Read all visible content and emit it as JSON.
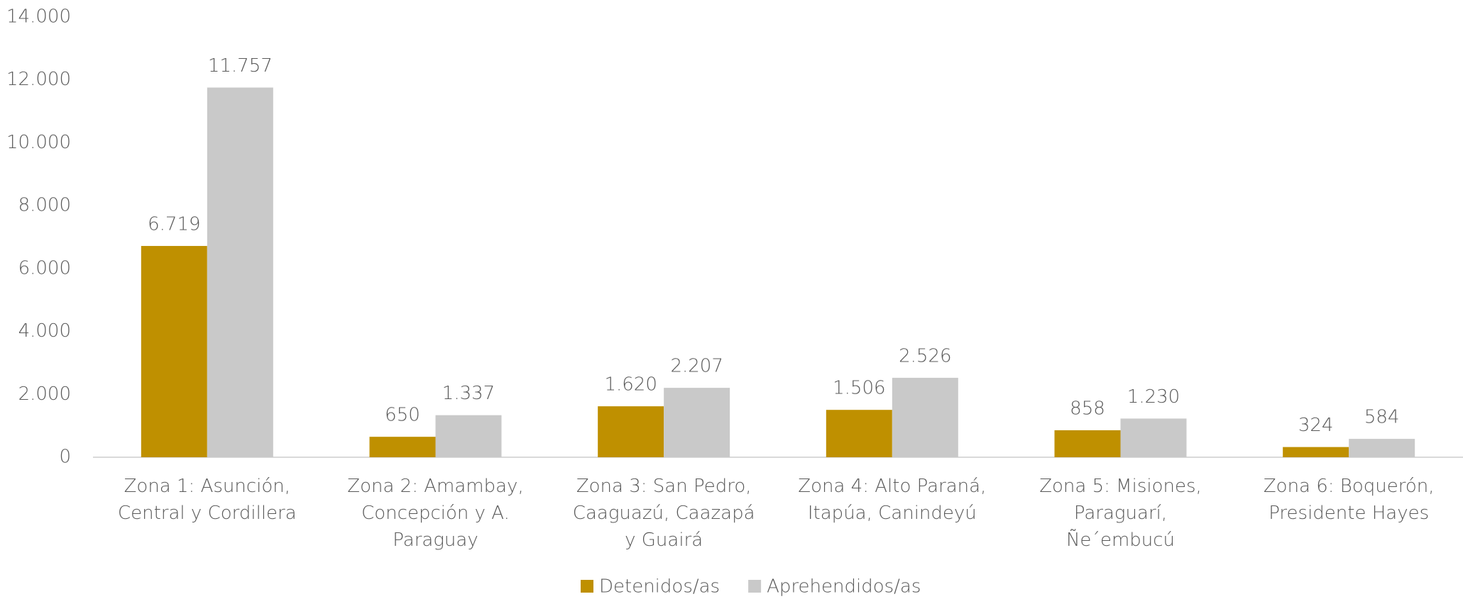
{
  "chart_data": {
    "type": "bar",
    "categories": [
      "Zona 1: Asunción, Central y Cordillera",
      "Zona 2: Amambay, Concepción y A. Paraguay",
      "Zona 3: San Pedro, Caaguazú, Caazapá y Guairá",
      "Zona 4: Alto Paraná, Itapúa, Canindeyú",
      "Zona 5: Misiones, Paraguarí, Ñe´embucú",
      "Zona 6: Boquerón, Presidente Hayes"
    ],
    "series": [
      {
        "name": "Detenidos/as",
        "color": "#bf9000",
        "values": [
          6719,
          650,
          1620,
          1506,
          858,
          324
        ],
        "value_labels": [
          "6.719",
          "650",
          "1.620",
          "1.506",
          "858",
          "324"
        ]
      },
      {
        "name": "Aprehendidos/as",
        "color": "#c9c9c9",
        "values": [
          11757,
          1337,
          2207,
          2526,
          1230,
          584
        ],
        "value_labels": [
          "11.757",
          "1.337",
          "2.207",
          "2.526",
          "1.230",
          "584"
        ]
      }
    ],
    "ylim": [
      0,
      14000
    ],
    "yticks": [
      0,
      {
        "value": 2000,
        "label": "2.000"
      },
      {
        "value": 4000,
        "label": "4.000"
      },
      {
        "value": 6000,
        "label": "6.000"
      },
      {
        "value": 8000,
        "label": "8.000"
      },
      {
        "value": 10000,
        "label": "10.000"
      },
      {
        "value": 12000,
        "label": "12.000"
      },
      {
        "value": 14000,
        "label": "14.000"
      }
    ],
    "grid": false,
    "legend": "bottom"
  }
}
